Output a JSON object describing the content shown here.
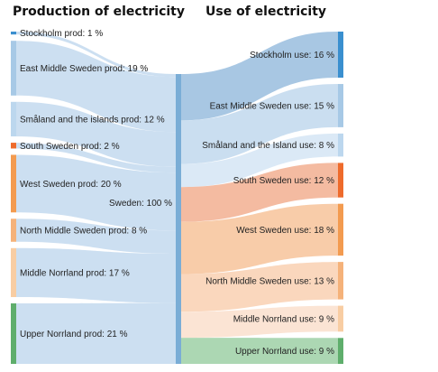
{
  "headings": {
    "production": "Production of electricity",
    "use": "Use of electricity"
  },
  "hub": {
    "label": "Sweden: 100 %",
    "color": "#7aadd6"
  },
  "production": [
    {
      "label": "Stockholm prod: 1 %",
      "value": 1,
      "color": "#3a8fcf"
    },
    {
      "label": "East Middle Sweden prod: 19 %",
      "value": 19,
      "color": "#a7c9e6"
    },
    {
      "label": "Småland and the islands prod: 12 %",
      "value": 12,
      "color": "#bcd7ee"
    },
    {
      "label": "South Sweden prod: 2 %",
      "value": 2,
      "color": "#ee6b2c"
    },
    {
      "label": "West Sweden prod: 20 %",
      "value": 20,
      "color": "#f39b50"
    },
    {
      "label": "North Middle Sweden prod: 8 %",
      "value": 8,
      "color": "#f5b27a"
    },
    {
      "label": "Middle Norrland prod: 17 %",
      "value": 17,
      "color": "#f8cda3"
    },
    {
      "label": "Upper Norrland prod: 21 %",
      "value": 21,
      "color": "#5fae6c"
    }
  ],
  "use": [
    {
      "label": "Stockholm use: 16 %",
      "value": 16,
      "color": "#3a8fcf",
      "flow": "#a3c4e1"
    },
    {
      "label": "East Middle Sweden use: 15 %",
      "value": 15,
      "color": "#a7c9e6",
      "flow": "#c7dcef"
    },
    {
      "label": "Småland and the Island use: 8 %",
      "value": 8,
      "color": "#bcd7ee",
      "flow": "#d9e8f5"
    },
    {
      "label": "South Sweden use: 12 %",
      "value": 12,
      "color": "#ee6b2c",
      "flow": "#f3b79c"
    },
    {
      "label": "West Sweden use: 18 %",
      "value": 18,
      "color": "#f39b50",
      "flow": "#f8c9a4"
    },
    {
      "label": "North Middle Sweden use: 13 %",
      "value": 13,
      "color": "#f5b27a",
      "flow": "#fad5b9"
    },
    {
      "label": "Middle Norrland use: 9 %",
      "value": 9,
      "color": "#f8cda3",
      "flow": "#fbe3d2"
    },
    {
      "label": "Upper Norrland use: 9 %",
      "value": 9,
      "color": "#5fae6c",
      "flow": "#a8d5af"
    }
  ],
  "flow_color_in": "#c6dcef"
}
